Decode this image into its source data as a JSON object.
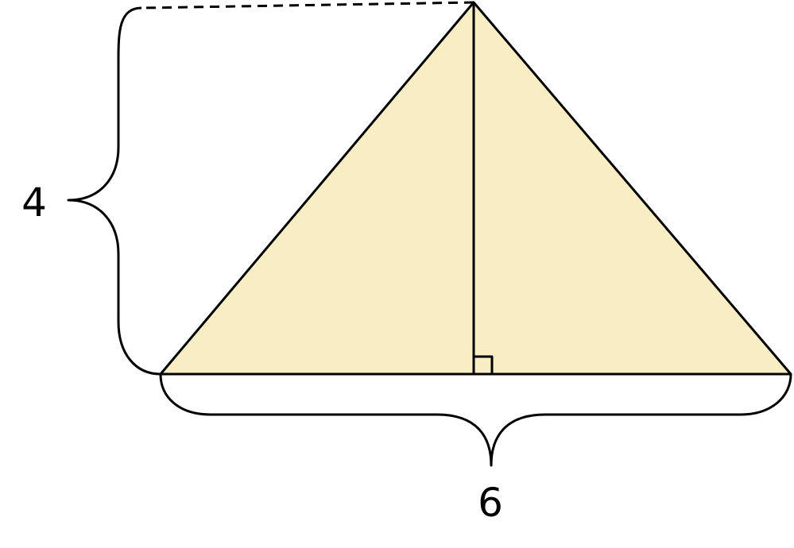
{
  "diagram": {
    "height_label": "4",
    "base_label": "6"
  },
  "colors": {
    "triangle_fill": "#F9EDC3",
    "stroke": "#000000",
    "background": "#FFFFFF"
  }
}
